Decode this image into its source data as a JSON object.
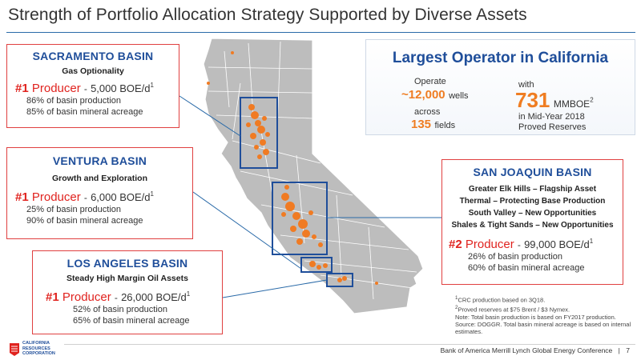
{
  "header": {
    "title": "Strength of Portfolio Allocation Strategy Supported by Diverse Assets"
  },
  "colors": {
    "brand_blue": "#1f4e9a",
    "accent_red": "#e0231f",
    "accent_orange": "#ef7d22",
    "map_gray": "#b9b9b9"
  },
  "sacramento": {
    "name": "SACRAMENTO BASIN",
    "subtitle": "Gas Optionality",
    "rank": "#1",
    "producer": "Producer",
    "value": "5,000 BOE/d",
    "footnote": "1",
    "stat1": "86% of basin production",
    "stat2": "85% of basin mineral acreage"
  },
  "ventura": {
    "name": "VENTURA BASIN",
    "subtitle": "Growth and Exploration",
    "rank": "#1",
    "producer": "Producer",
    "value": "6,000 BOE/d",
    "footnote": "1",
    "stat1": "25% of basin production",
    "stat2": "90% of basin mineral acreage"
  },
  "la": {
    "name": "LOS ANGELES BASIN",
    "subtitle": "Steady High Margin Oil Assets",
    "rank": "#1",
    "producer": "Producer",
    "value": "26,000 BOE/d",
    "footnote": "1",
    "stat1": "52% of basin production",
    "stat2": "65% of basin mineral acreage"
  },
  "sanjoaquin": {
    "name": "SAN JOAQUIN BASIN",
    "line1": "Greater Elk Hills – Flagship Asset",
    "line2": "Thermal – Protecting Base Production",
    "line3": "South Valley – New Opportunities",
    "line4": "Shales & Tight Sands – New Opportunities",
    "rank": "#2",
    "producer": "Producer",
    "value": "99,000 BOE/d",
    "footnote": "1",
    "stat1": "26% of basin production",
    "stat2": "60% of basin mineral acreage"
  },
  "operator": {
    "title": "Largest Operator in California",
    "operate": "Operate",
    "wells_count": "~12,000",
    "wells": "wells",
    "across": "across",
    "fields_count": "135",
    "fields": "fields",
    "with": "with",
    "reserves_count": "731",
    "reserves_unit": "MMBOE",
    "reserves_fn": "2",
    "reserves_line1": "in Mid-Year 2018",
    "reserves_line2": "Proved Reserves"
  },
  "notes": {
    "n1": "CRC production based on 3Q18.",
    "n2": "Proved reserves at $75 Brent / $3 Nymex.",
    "n3": "Note: Total basin production is based on FY2017 production. Source: DOGGR. Total basin mineral acreage is based on internal estimates.",
    "n1_mark": "1",
    "n2_mark": "2"
  },
  "footer": {
    "text": "Bank of America Merrill Lynch Global Energy Conference",
    "sep": "|",
    "page": "7",
    "logo_l1": "CALIFORNIA",
    "logo_l2": "RESOURCES",
    "logo_l3": "CORPORATION"
  }
}
